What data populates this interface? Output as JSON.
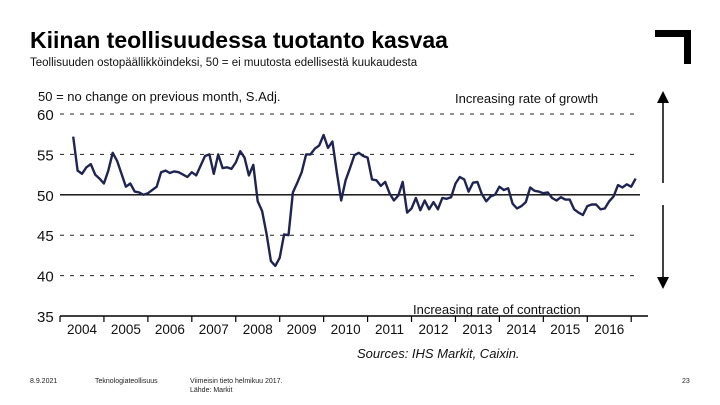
{
  "header": {
    "title": "Kiinan teollisuudessa tuotanto kasvaa",
    "subtitle": "Teollisuuden ostopäällikköindeksi, 50 = ei muutosta edellisestä kuukaudesta"
  },
  "footer": {
    "date": "8.9.2021",
    "organization": "Teknologiateollisuus",
    "note_line1": "Viimeisin tieto helmikuu 2017.",
    "note_line2": "Lähde: Markit",
    "page_number": "23"
  },
  "chart_data": {
    "type": "line",
    "note": "50 = no change on previous month, S.Adj.",
    "annotation_top": "Increasing rate of growth",
    "annotation_bottom": "Increasing rate of contraction",
    "source": "Sources: IHS Markit, Caixin.",
    "ylim": [
      35,
      60
    ],
    "yticks": [
      "60",
      "55",
      "50",
      "45",
      "40",
      "35"
    ],
    "reference_line": 50,
    "grid": "dashed horizontal at 45, 55, 60",
    "xlim": [
      2004,
      2017.2
    ],
    "xticks": [
      "2004",
      "2005",
      "2006",
      "2007",
      "2008",
      "2009",
      "2010",
      "2011",
      "2012",
      "2013",
      "2014",
      "2015",
      "2016"
    ],
    "series": [
      {
        "color": "#1f2451",
        "x": [
          2004.3,
          2004.4,
          2004.5,
          2004.6,
          2004.7,
          2004.8,
          2004.9,
          2005.0,
          2005.1,
          2005.2,
          2005.3,
          2005.4,
          2005.5,
          2005.6,
          2005.7,
          2005.8,
          2005.9,
          2006.0,
          2006.1,
          2006.2,
          2006.3,
          2006.4,
          2006.5,
          2006.6,
          2006.7,
          2006.8,
          2006.9,
          2007.0,
          2007.1,
          2007.2,
          2007.3,
          2007.4,
          2007.5,
          2007.6,
          2007.7,
          2007.8,
          2007.9,
          2008.0,
          2008.1,
          2008.2,
          2008.3,
          2008.4,
          2008.5,
          2008.6,
          2008.7,
          2008.8,
          2008.9,
          2009.0,
          2009.1,
          2009.2,
          2009.3,
          2009.4,
          2009.5,
          2009.6,
          2009.7,
          2009.8,
          2009.9,
          2010.0,
          2010.1,
          2010.2,
          2010.3,
          2010.4,
          2010.5,
          2010.6,
          2010.7,
          2010.8,
          2010.9,
          2011.0,
          2011.1,
          2011.2,
          2011.3,
          2011.4,
          2011.5,
          2011.6,
          2011.7,
          2011.8,
          2011.9,
          2012.0,
          2012.1,
          2012.2,
          2012.3,
          2012.4,
          2012.5,
          2012.6,
          2012.7,
          2012.8,
          2012.9,
          2013.0,
          2013.1,
          2013.2,
          2013.3,
          2013.4,
          2013.5,
          2013.6,
          2013.7,
          2013.8,
          2013.9,
          2014.0,
          2014.1,
          2014.2,
          2014.3,
          2014.4,
          2014.5,
          2014.6,
          2014.7,
          2014.8,
          2014.9,
          2015.0,
          2015.1,
          2015.2,
          2015.3,
          2015.4,
          2015.5,
          2015.6,
          2015.7,
          2015.8,
          2015.9,
          2016.0,
          2016.1,
          2016.2,
          2016.3,
          2016.4,
          2016.5,
          2016.6,
          2016.7,
          2016.8,
          2016.9,
          2017.0,
          2017.1
        ],
        "y": [
          57.2,
          53.0,
          52.6,
          53.4,
          53.8,
          52.5,
          52.0,
          51.4,
          53.0,
          55.2,
          54.2,
          52.6,
          51.0,
          51.4,
          50.4,
          50.3,
          50.0,
          50.2,
          50.6,
          51.0,
          52.8,
          53.0,
          52.7,
          52.9,
          52.8,
          52.5,
          52.2,
          52.8,
          52.4,
          53.6,
          54.8,
          55.0,
          52.6,
          55.0,
          53.3,
          53.4,
          53.2,
          54.0,
          55.4,
          54.6,
          52.4,
          53.7,
          49.2,
          48.0,
          45.2,
          41.8,
          41.2,
          42.2,
          45.1,
          45.0,
          50.3,
          51.5,
          52.8,
          55.0,
          55.0,
          55.7,
          56.1,
          57.4,
          55.8,
          56.6,
          52.8,
          49.3,
          51.8,
          53.3,
          54.9,
          55.2,
          54.8,
          54.6,
          51.9,
          51.8,
          51.1,
          51.6,
          50.2,
          49.3,
          49.9,
          51.6,
          47.8,
          48.3,
          49.6,
          48.1,
          49.3,
          48.2,
          49.1,
          48.2,
          49.6,
          49.5,
          49.7,
          51.4,
          52.2,
          51.9,
          50.4,
          51.5,
          51.6,
          50.1,
          49.2,
          49.8,
          50.0,
          51.0,
          50.6,
          50.8,
          48.9,
          48.3,
          48.6,
          49.1,
          50.9,
          50.5,
          50.4,
          50.2,
          50.3,
          49.6,
          49.3,
          49.7,
          49.4,
          49.4,
          48.2,
          47.8,
          47.5,
          48.6,
          48.8,
          48.8,
          48.2,
          48.3,
          49.2,
          49.8,
          51.2,
          50.9,
          51.3,
          51.0,
          52.0
        ]
      }
    ]
  }
}
